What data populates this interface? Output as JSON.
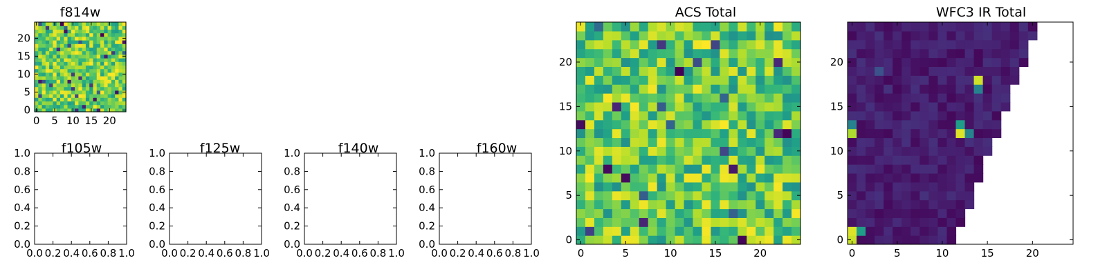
{
  "chart_data": [
    {
      "type": "heatmap",
      "title": "f814w",
      "xlim": [
        -0.5,
        24.5
      ],
      "ylim": [
        -0.5,
        24.5
      ],
      "xticks": [
        0,
        5,
        10,
        15,
        20
      ],
      "yticks": [
        0,
        5,
        10,
        15,
        20
      ],
      "xticklabels": [
        "0",
        "5",
        "10",
        "15",
        "20"
      ],
      "yticklabels": [
        "0",
        "5",
        "10",
        "15",
        "20"
      ],
      "grid": false,
      "colormap": "viridis",
      "origin": "lower",
      "size": [
        25,
        25
      ],
      "seed": 11,
      "value_range": [
        0.55,
        1.0
      ],
      "dark_fraction": 0.04,
      "nan_triangle": false
    },
    {
      "type": "empty_axes",
      "title": "f105w",
      "xlim": [
        0,
        1
      ],
      "ylim": [
        0,
        1
      ],
      "xticklabels": [
        "0.0",
        "0.2",
        "0.4",
        "0.6",
        "0.8",
        "1.0"
      ],
      "yticklabels": [
        "0.0",
        "0.2",
        "0.4",
        "0.6",
        "0.8",
        "1.0"
      ]
    },
    {
      "type": "empty_axes",
      "title": "f125w",
      "xlim": [
        0,
        1
      ],
      "ylim": [
        0,
        1
      ],
      "xticklabels": [
        "0.0",
        "0.2",
        "0.4",
        "0.6",
        "0.8",
        "1.0"
      ],
      "yticklabels": [
        "0.0",
        "0.2",
        "0.4",
        "0.6",
        "0.8",
        "1.0"
      ]
    },
    {
      "type": "empty_axes",
      "title": "f140w",
      "xlim": [
        0,
        1
      ],
      "ylim": [
        0,
        1
      ],
      "xticklabels": [
        "0.0",
        "0.2",
        "0.4",
        "0.6",
        "0.8",
        "1.0"
      ],
      "yticklabels": [
        "0.0",
        "0.2",
        "0.4",
        "0.6",
        "0.8",
        "1.0"
      ]
    },
    {
      "type": "empty_axes",
      "title": "f160w",
      "xlim": [
        0,
        1
      ],
      "ylim": [
        0,
        1
      ],
      "xticklabels": [
        "0.0",
        "0.2",
        "0.4",
        "0.6",
        "0.8",
        "1.0"
      ],
      "yticklabels": [
        "0.0",
        "0.2",
        "0.4",
        "0.6",
        "0.8",
        "1.0"
      ]
    },
    {
      "type": "heatmap",
      "title": "ACS Total",
      "xlim": [
        -0.5,
        24.5
      ],
      "ylim": [
        -0.5,
        24.5
      ],
      "xticks": [
        0,
        5,
        10,
        15,
        20
      ],
      "yticks": [
        0,
        5,
        10,
        15,
        20
      ],
      "xticklabels": [
        "0",
        "5",
        "10",
        "15",
        "20"
      ],
      "yticklabels": [
        "0",
        "5",
        "10",
        "15",
        "20"
      ],
      "grid": false,
      "colormap": "viridis",
      "origin": "lower",
      "size": [
        25,
        25
      ],
      "seed": 29,
      "value_range": [
        0.5,
        1.0
      ],
      "dark_fraction": 0.03,
      "nan_triangle": false
    },
    {
      "type": "heatmap",
      "title": "WFC3 IR Total",
      "xlim": [
        -0.5,
        24.5
      ],
      "ylim": [
        -0.5,
        24.5
      ],
      "xticks": [
        0,
        5,
        10,
        15,
        20
      ],
      "yticks": [
        0,
        5,
        10,
        15,
        20
      ],
      "xticklabels": [
        "0",
        "5",
        "10",
        "15",
        "20"
      ],
      "yticklabels": [
        "0",
        "5",
        "10",
        "15",
        "20"
      ],
      "grid": false,
      "colormap": "viridis",
      "origin": "lower",
      "size": [
        25,
        25
      ],
      "seed": 53,
      "value_range": [
        0.02,
        0.14
      ],
      "dark_fraction": 0.0,
      "nan_triangle": true,
      "hot_pixels": [
        {
          "x": 0,
          "y": 0,
          "v": 0.92
        },
        {
          "x": 0,
          "y": 1,
          "v": 0.95
        },
        {
          "x": 1,
          "y": 1,
          "v": 0.55
        },
        {
          "x": 0,
          "y": 12,
          "v": 0.88
        },
        {
          "x": 0,
          "y": 13,
          "v": 0.45
        },
        {
          "x": 12,
          "y": 12,
          "v": 0.95
        },
        {
          "x": 12,
          "y": 13,
          "v": 0.55
        },
        {
          "x": 13,
          "y": 12,
          "v": 0.45
        },
        {
          "x": 14,
          "y": 18,
          "v": 0.93
        },
        {
          "x": 14,
          "y": 17,
          "v": 0.45
        },
        {
          "x": 3,
          "y": 19,
          "v": 0.25
        }
      ]
    }
  ]
}
